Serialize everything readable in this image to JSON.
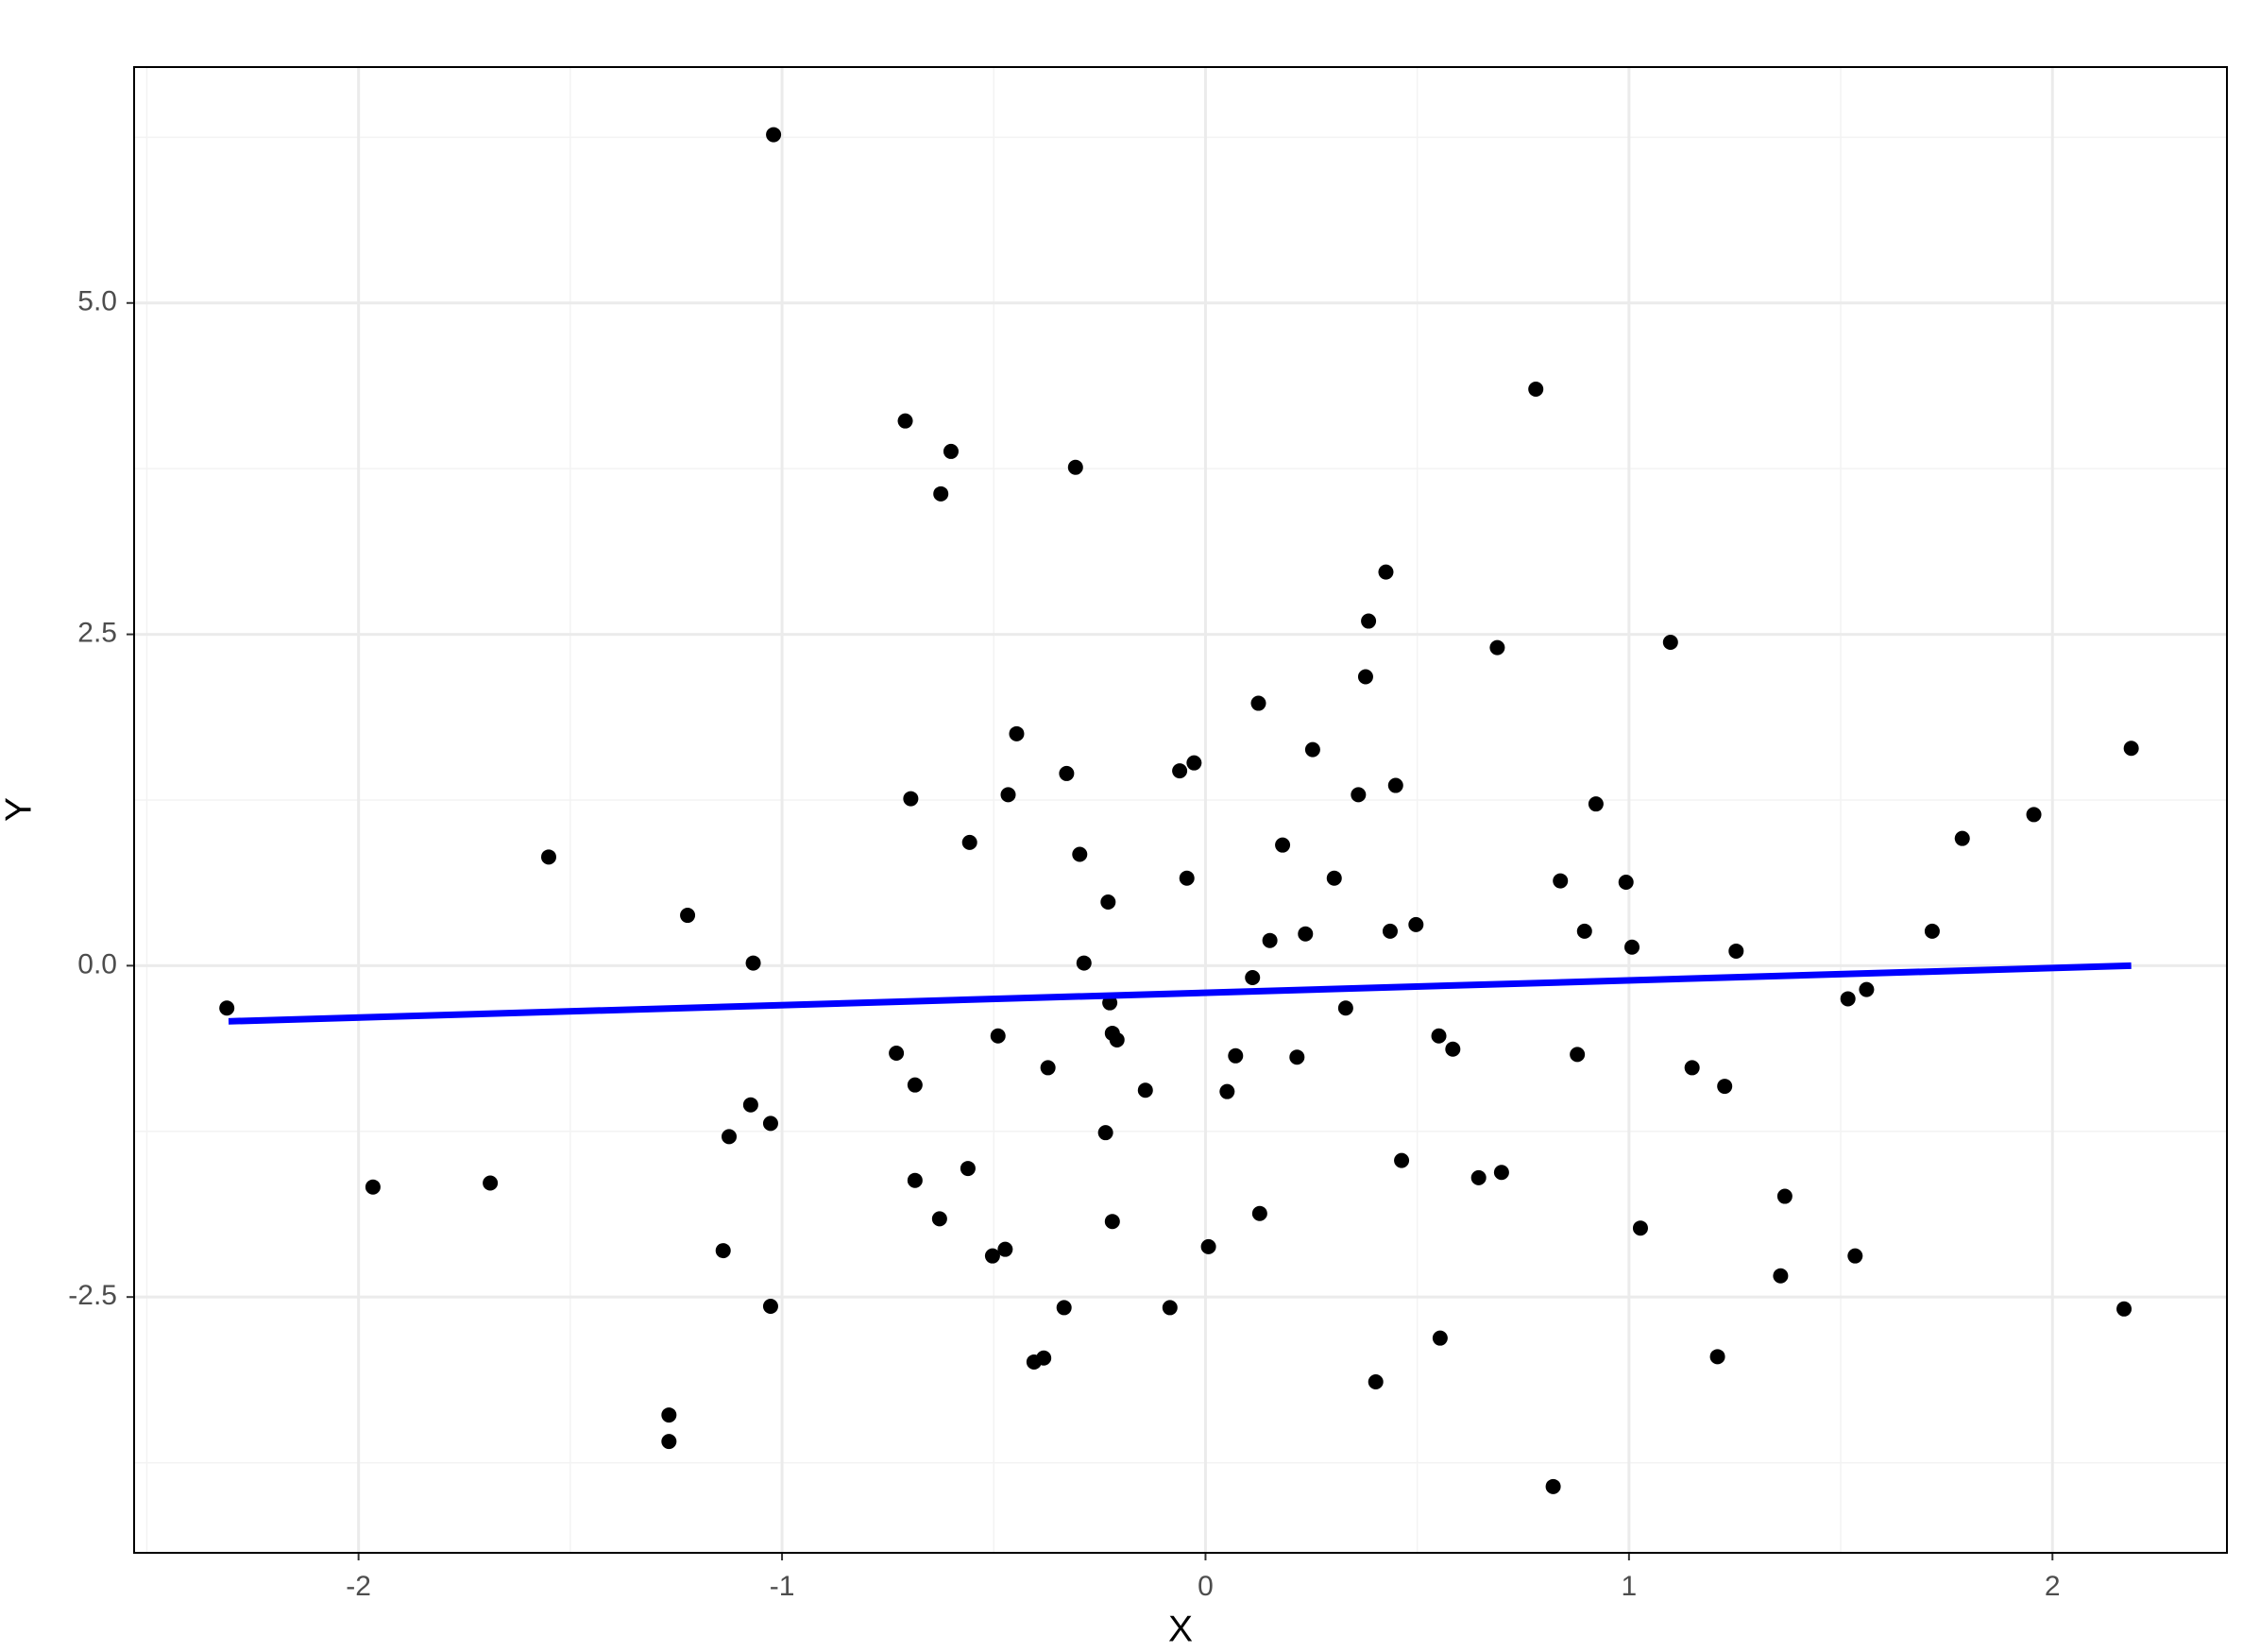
{
  "chart_data": {
    "type": "scatter",
    "x_label": "X",
    "y_label": "Y",
    "xlim": [
      -2.53,
      2.412
    ],
    "ylim": [
      -4.43,
      6.78
    ],
    "xticks": [
      -2,
      -1,
      0,
      1,
      2
    ],
    "yticks": [
      -2.5,
      {
        "value": 0,
        "label": "0.0"
      },
      2.5,
      {
        "value": 5,
        "label": "5.0"
      }
    ],
    "grid": true,
    "point_color": "#000000",
    "x": [
      -2.311,
      -1.966,
      -1.689,
      -1.551,
      -1.267,
      -1.267,
      -1.223,
      -1.139,
      -1.125,
      -1.074,
      -1.068,
      -1.027,
      -1.027,
      -1.02,
      -0.73,
      -0.709,
      -0.696,
      -0.686,
      -0.686,
      -0.628,
      -0.625,
      -0.601,
      -0.561,
      -0.557,
      -0.503,
      -0.49,
      -0.473,
      -0.466,
      -0.446,
      -0.405,
      -0.382,
      -0.372,
      -0.334,
      -0.328,
      -0.307,
      -0.297,
      -0.287,
      -0.236,
      -0.23,
      -0.226,
      -0.22,
      -0.22,
      -0.209,
      -0.142,
      -0.084,
      -0.061,
      -0.044,
      -0.027,
      0.007,
      0.051,
      0.071,
      0.111,
      0.125,
      0.128,
      0.152,
      0.182,
      0.216,
      0.236,
      0.253,
      0.304,
      0.331,
      0.361,
      0.378,
      0.385,
      0.402,
      0.426,
      0.436,
      0.449,
      0.463,
      0.497,
      0.551,
      0.554,
      0.584,
      0.645,
      0.689,
      0.699,
      0.78,
      0.821,
      0.838,
      0.878,
      0.895,
      0.922,
      0.993,
      1.007,
      1.027,
      1.098,
      1.149,
      1.209,
      1.226,
      1.253,
      1.358,
      1.368,
      1.517,
      1.534,
      1.561,
      1.716,
      1.787,
      1.956,
      2.169,
      2.186
    ],
    "y": [
      -0.32,
      -1.67,
      -1.64,
      0.82,
      -3.39,
      -3.59,
      0.38,
      -2.15,
      -1.29,
      -1.05,
      0.02,
      -1.19,
      -2.57,
      6.27,
      -0.66,
      4.11,
      1.26,
      -0.9,
      -1.62,
      -1.91,
      3.56,
      3.88,
      -1.53,
      0.93,
      -2.19,
      -0.53,
      -2.14,
      1.29,
      1.75,
      -2.99,
      -2.96,
      -0.77,
      -2.58,
      1.45,
      3.76,
      0.84,
      0.02,
      -1.26,
      0.48,
      -0.28,
      -0.51,
      -1.93,
      -0.56,
      -0.94,
      -2.58,
      1.47,
      0.66,
      1.53,
      -2.12,
      -0.95,
      -0.68,
      -0.09,
      1.98,
      -1.87,
      0.19,
      0.91,
      -0.69,
      0.24,
      1.63,
      0.66,
      -0.32,
      1.29,
      2.18,
      2.6,
      -3.14,
      2.97,
      0.26,
      1.36,
      -1.47,
      0.31,
      -0.53,
      -2.81,
      -0.63,
      -1.6,
      2.4,
      -1.56,
      4.35,
      -3.93,
      0.64,
      -0.67,
      0.26,
      1.22,
      0.63,
      0.14,
      -1.98,
      2.44,
      -0.77,
      -2.95,
      -0.91,
      0.11,
      -2.34,
      -1.74,
      -0.25,
      -2.19,
      -0.18,
      0.26,
      0.96,
      1.14,
      -2.59,
      1.64
    ],
    "fit_line": {
      "x": [
        -2.307,
        2.186
      ],
      "y": [
        -0.42,
        0.0
      ],
      "color": "#0000ff"
    }
  }
}
